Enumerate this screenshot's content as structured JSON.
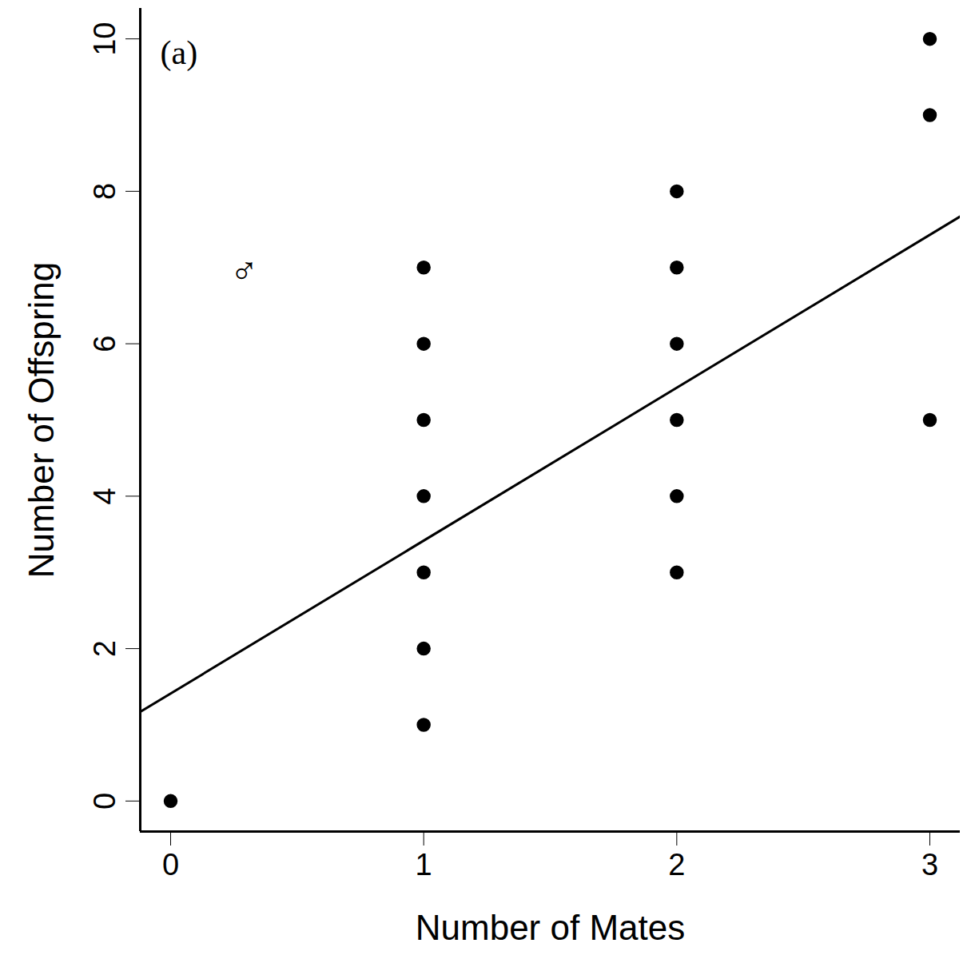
{
  "chart_data": {
    "type": "scatter",
    "xlabel": "Number of Mates",
    "ylabel": "Number of Offspring",
    "x": [
      0,
      1,
      1,
      1,
      1,
      1,
      1,
      1,
      2,
      2,
      2,
      2,
      2,
      2,
      3,
      3,
      3
    ],
    "values": [
      0,
      1,
      2,
      3,
      4,
      5,
      6,
      7,
      3,
      4,
      5,
      6,
      7,
      8,
      5,
      9,
      10
    ],
    "color": "#000000",
    "marker": "circle",
    "fit_line": {
      "x": [
        -0.12,
        3.12
      ],
      "y": [
        1.17,
        7.67
      ],
      "color": "#000000",
      "line_style": "solid"
    },
    "xlim": [
      -0.12,
      3.12
    ],
    "ylim": [
      -0.4,
      10.4
    ],
    "xticks": [
      0,
      1,
      2,
      3
    ],
    "yticks": [
      0,
      2,
      4,
      6,
      8,
      10
    ],
    "grid": false,
    "annotations": [
      "(a)",
      "♂"
    ]
  }
}
